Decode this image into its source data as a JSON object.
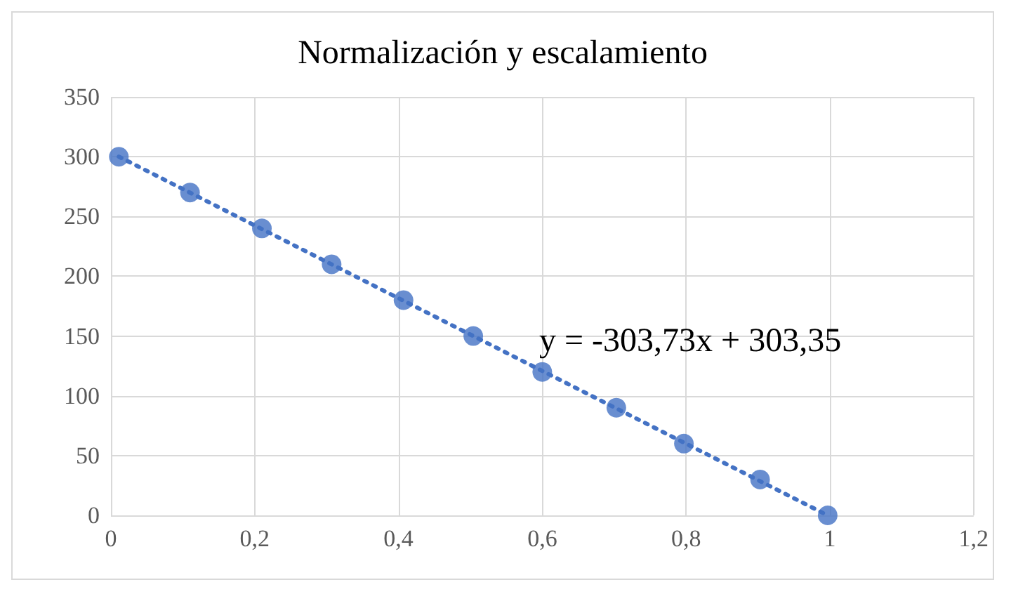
{
  "chart_data": {
    "type": "scatter",
    "title": "Normalización y escalamiento",
    "marker": "circle",
    "grid": true,
    "xlim": [
      0,
      1.2
    ],
    "xticks": [
      {
        "value": 0,
        "label": "0"
      },
      {
        "value": 0.2,
        "label": "0,2"
      },
      {
        "value": 0.4,
        "label": "0,4"
      },
      {
        "value": 0.6,
        "label": "0,6"
      },
      {
        "value": 0.8,
        "label": "0,8"
      },
      {
        "value": 1,
        "label": "1"
      },
      {
        "value": 1.2,
        "label": "1,2"
      }
    ],
    "ylim": [
      0,
      350
    ],
    "yticks": [
      0,
      50,
      100,
      150,
      200,
      250,
      300,
      350
    ],
    "series": [
      {
        "color": "#4472c4",
        "x": [
          0.011,
          0.11,
          0.21,
          0.307,
          0.407,
          0.504,
          0.6,
          0.703,
          0.797,
          0.903,
          0.997
        ],
        "values": [
          300,
          270,
          240,
          210,
          180,
          150,
          120,
          90,
          60,
          30,
          0
        ]
      },
      {
        "type": "line",
        "color": "#4472c4",
        "line_style": "dotted",
        "marker": "none",
        "x": [
          0.011,
          0.997
        ],
        "values": [
          300,
          0
        ]
      }
    ],
    "annotations": [
      "y = -303,73x + 303,35"
    ]
  }
}
